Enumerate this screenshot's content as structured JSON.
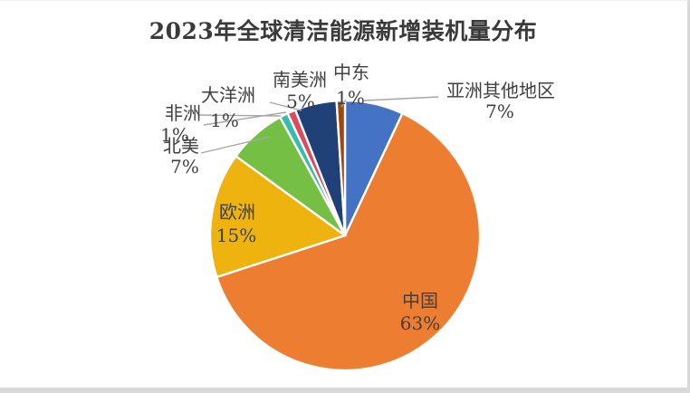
{
  "title": "2023年全球清洁能源新增装机量分布",
  "percent_suffix": "%",
  "colors": {
    "background": "#FFFFFF",
    "title_text": "#3A3A3A",
    "label_text": "#404040",
    "leader_line": "#A6A6A6",
    "slice_border": "#FFFFFF",
    "frame_edge": "#D9D9D9"
  },
  "chart_data": {
    "type": "pie",
    "title": "2023年全球清洁能源新增装机量分布",
    "values_are": "percent",
    "total": 100,
    "start_angle_deg": 0,
    "direction": "clockwise",
    "legend": "none",
    "slices": [
      {
        "key": "other-asia",
        "label": "亚洲其他地区",
        "value": 7,
        "color": "#4472C4"
      },
      {
        "key": "china",
        "label": "中国",
        "value": 63,
        "color": "#ED7D31"
      },
      {
        "key": "europe",
        "label": "欧洲",
        "value": 15,
        "color": "#EEB30F"
      },
      {
        "key": "north-america",
        "label": "北美",
        "value": 7,
        "color": "#74BF44"
      },
      {
        "key": "africa",
        "label": "非洲",
        "value": 1,
        "color": "#35BCAD"
      },
      {
        "key": "oceania",
        "label": "大洋洲",
        "value": 1,
        "color": "#DD4A5F"
      },
      {
        "key": "south-america",
        "label": "南美洲",
        "value": 5,
        "color": "#1F4178"
      },
      {
        "key": "middle-east",
        "label": "中东",
        "value": 1,
        "color": "#9E480E"
      }
    ]
  }
}
